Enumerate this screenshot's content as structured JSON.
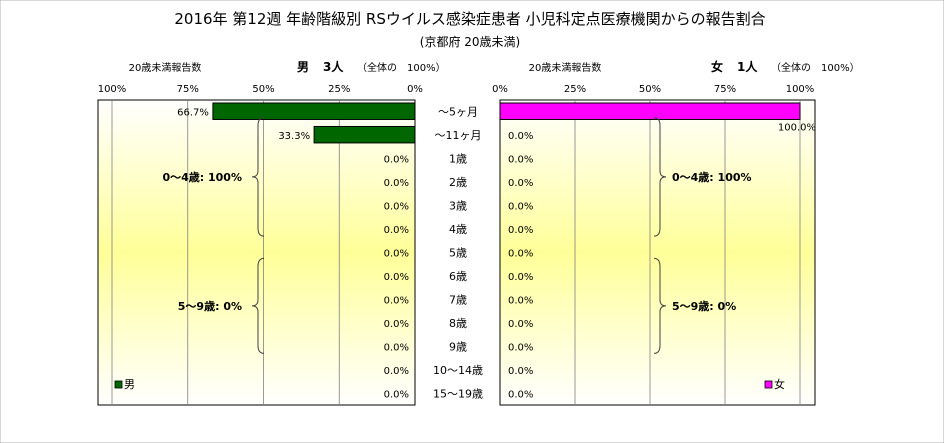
{
  "chart_data": {
    "type": "bar",
    "orientation": "horizontal-butterfly",
    "title": "2016年 第12週 年齢階級別 RSウイルス感染症患者 小児科定点医療機関からの報告割合",
    "subtitle": "(京都府 20歳未満)",
    "categories": [
      "～5ヶ月",
      "～11ヶ月",
      "1歳",
      "2歳",
      "3歳",
      "4歳",
      "5歳",
      "6歳",
      "7歳",
      "8歳",
      "9歳",
      "10～14歳",
      "15～19歳"
    ],
    "xlim": [
      0,
      100
    ],
    "x_ticks": [
      "0%",
      "25%",
      "50%",
      "75%",
      "100%"
    ],
    "grid": true,
    "panels": [
      {
        "side": "left",
        "axis_label": "20歳未満報告数",
        "header_sex": "男",
        "header_count": "3人",
        "header_total": "（全体の　100%）",
        "series": [
          {
            "name": "男",
            "color": "#006600",
            "values": [
              66.7,
              33.3,
              0,
              0,
              0,
              0,
              0,
              0,
              0,
              0,
              0,
              0,
              0
            ]
          }
        ],
        "value_labels": [
          "66.7%",
          "33.3%",
          "0.0%",
          "0.0%",
          "0.0%",
          "0.0%",
          "0.0%",
          "0.0%",
          "0.0%",
          "0.0%",
          "0.0%",
          "0.0%",
          "0.0%"
        ],
        "groups": [
          {
            "label": "0～4歳: 100%",
            "from": 0,
            "to": 5
          },
          {
            "label": "5～9歳: 0%",
            "from": 6,
            "to": 10
          }
        ],
        "legend": "男"
      },
      {
        "side": "right",
        "axis_label": "20歳未満報告数",
        "header_sex": "女",
        "header_count": "1人",
        "header_total": "（全体の　100%）",
        "series": [
          {
            "name": "女",
            "color": "#ff00ff",
            "values": [
              100,
              0,
              0,
              0,
              0,
              0,
              0,
              0,
              0,
              0,
              0,
              0,
              0
            ]
          }
        ],
        "value_labels": [
          "100.0%",
          "0.0%",
          "0.0%",
          "0.0%",
          "0.0%",
          "0.0%",
          "0.0%",
          "0.0%",
          "0.0%",
          "0.0%",
          "0.0%",
          "0.0%",
          "0.0%"
        ],
        "groups": [
          {
            "label": "0～4歳: 100%",
            "from": 0,
            "to": 5
          },
          {
            "label": "5～9歳: 0%",
            "from": 6,
            "to": 10
          }
        ],
        "legend": "女"
      }
    ]
  }
}
